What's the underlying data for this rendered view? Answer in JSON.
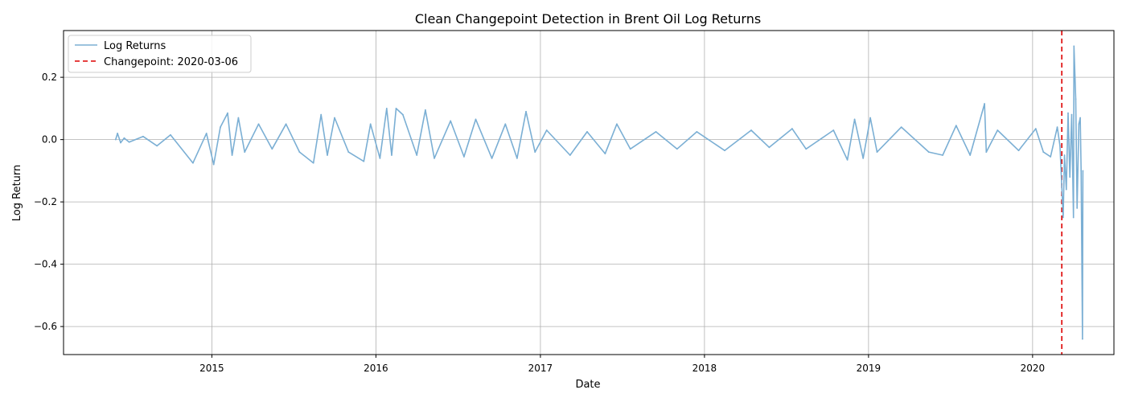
{
  "chart_data": {
    "type": "line",
    "title": "Clean Changepoint Detection in Brent Oil Log Returns",
    "xlabel": "Date",
    "ylabel": "Log Return",
    "x_range": [
      "2014-02-05",
      "2020-06-30"
    ],
    "ylim": [
      -0.69,
      0.35
    ],
    "x_ticks": [
      {
        "date": "2015-01-01",
        "label": "2015"
      },
      {
        "date": "2016-01-01",
        "label": "2016"
      },
      {
        "date": "2017-01-01",
        "label": "2017"
      },
      {
        "date": "2018-01-01",
        "label": "2018"
      },
      {
        "date": "2019-01-01",
        "label": "2019"
      },
      {
        "date": "2020-01-01",
        "label": "2020"
      }
    ],
    "y_ticks": [
      {
        "value": 0.2,
        "label": "0.2"
      },
      {
        "value": 0.0,
        "label": "0.0"
      },
      {
        "value": -0.2,
        "label": "−0.2"
      },
      {
        "value": -0.4,
        "label": "−0.4"
      },
      {
        "value": -0.6,
        "label": "−0.6"
      }
    ],
    "grid": true,
    "legend_position": "upper-left",
    "series": [
      {
        "name": "Log Returns",
        "color": "#7bafd4",
        "points": [
          [
            "2014-06-01",
            0.0
          ],
          [
            "2014-06-05",
            0.02
          ],
          [
            "2014-06-12",
            -0.01
          ],
          [
            "2014-06-20",
            0.005
          ],
          [
            "2014-07-01",
            -0.008
          ],
          [
            "2014-08-01",
            0.01
          ],
          [
            "2014-09-01",
            -0.02
          ],
          [
            "2014-10-01",
            0.015
          ],
          [
            "2014-11-20",
            -0.075
          ],
          [
            "2014-12-20",
            0.02
          ],
          [
            "2015-01-05",
            -0.08
          ],
          [
            "2015-01-20",
            0.04
          ],
          [
            "2015-02-05",
            0.085
          ],
          [
            "2015-02-15",
            -0.05
          ],
          [
            "2015-03-01",
            0.07
          ],
          [
            "2015-03-15",
            -0.04
          ],
          [
            "2015-04-15",
            0.05
          ],
          [
            "2015-05-15",
            -0.03
          ],
          [
            "2015-06-15",
            0.05
          ],
          [
            "2015-07-15",
            -0.04
          ],
          [
            "2015-08-15",
            -0.075
          ],
          [
            "2015-09-01",
            0.08
          ],
          [
            "2015-09-15",
            -0.05
          ],
          [
            "2015-10-01",
            0.07
          ],
          [
            "2015-11-01",
            -0.04
          ],
          [
            "2015-12-05",
            -0.07
          ],
          [
            "2015-12-20",
            0.05
          ],
          [
            "2016-01-10",
            -0.06
          ],
          [
            "2016-01-25",
            0.1
          ],
          [
            "2016-02-05",
            -0.05
          ],
          [
            "2016-02-15",
            0.1
          ],
          [
            "2016-03-01",
            0.08
          ],
          [
            "2016-04-01",
            -0.05
          ],
          [
            "2016-04-20",
            0.095
          ],
          [
            "2016-05-10",
            -0.06
          ],
          [
            "2016-06-15",
            0.06
          ],
          [
            "2016-07-15",
            -0.055
          ],
          [
            "2016-08-10",
            0.065
          ],
          [
            "2016-09-15",
            -0.06
          ],
          [
            "2016-10-15",
            0.05
          ],
          [
            "2016-11-10",
            -0.06
          ],
          [
            "2016-11-30",
            0.09
          ],
          [
            "2016-12-20",
            -0.04
          ],
          [
            "2017-01-15",
            0.03
          ],
          [
            "2017-03-08",
            -0.05
          ],
          [
            "2017-04-15",
            0.025
          ],
          [
            "2017-05-25",
            -0.045
          ],
          [
            "2017-06-20",
            0.05
          ],
          [
            "2017-07-20",
            -0.03
          ],
          [
            "2017-09-15",
            0.025
          ],
          [
            "2017-11-01",
            -0.03
          ],
          [
            "2017-12-15",
            0.025
          ],
          [
            "2018-02-15",
            -0.035
          ],
          [
            "2018-04-15",
            0.03
          ],
          [
            "2018-05-25",
            -0.025
          ],
          [
            "2018-07-15",
            0.035
          ],
          [
            "2018-08-15",
            -0.03
          ],
          [
            "2018-10-15",
            0.03
          ],
          [
            "2018-11-15",
            -0.065
          ],
          [
            "2018-12-01",
            0.065
          ],
          [
            "2018-12-20",
            -0.06
          ],
          [
            "2019-01-05",
            0.07
          ],
          [
            "2019-01-20",
            -0.04
          ],
          [
            "2019-03-15",
            0.04
          ],
          [
            "2019-05-15",
            -0.04
          ],
          [
            "2019-06-15",
            -0.05
          ],
          [
            "2019-07-15",
            0.045
          ],
          [
            "2019-08-15",
            -0.05
          ],
          [
            "2019-09-16",
            0.115
          ],
          [
            "2019-09-20",
            -0.04
          ],
          [
            "2019-10-15",
            0.03
          ],
          [
            "2019-12-01",
            -0.035
          ],
          [
            "2020-01-08",
            0.035
          ],
          [
            "2020-01-25",
            -0.04
          ],
          [
            "2020-02-10",
            -0.055
          ],
          [
            "2020-02-25",
            0.04
          ],
          [
            "2020-03-02",
            -0.02
          ],
          [
            "2020-03-09",
            -0.25
          ],
          [
            "2020-03-12",
            -0.05
          ],
          [
            "2020-03-16",
            -0.16
          ],
          [
            "2020-03-20",
            0.085
          ],
          [
            "2020-03-24",
            -0.12
          ],
          [
            "2020-03-28",
            0.08
          ],
          [
            "2020-04-01",
            -0.25
          ],
          [
            "2020-04-02",
            0.3
          ],
          [
            "2020-04-06",
            0.13
          ],
          [
            "2020-04-09",
            -0.22
          ],
          [
            "2020-04-13",
            0.05
          ],
          [
            "2020-04-16",
            0.07
          ],
          [
            "2020-04-18",
            -0.1
          ],
          [
            "2020-04-21",
            -0.64
          ],
          [
            "2020-04-22",
            -0.1
          ]
        ]
      }
    ],
    "changepoint": {
      "date": "2020-03-06",
      "label": "Changepoint: 2020-03-06",
      "color": "#dd0000",
      "style": "dashed"
    }
  }
}
